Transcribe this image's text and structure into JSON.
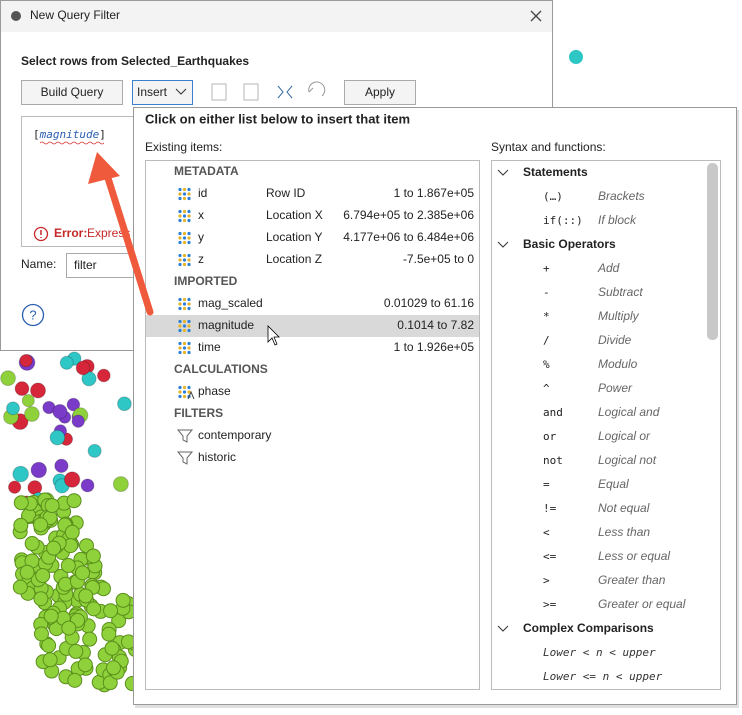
{
  "dialog": {
    "title": "New Query Filter",
    "prompt": "Select rows from Selected_Earthquakes",
    "buttons": [
      "Build Query",
      "Insert",
      "Apply"
    ],
    "expression": [
      "[",
      "magnitude",
      "]"
    ],
    "error_label": "Error:",
    "error_text": "Express",
    "name_label": "Name:",
    "name_value": "filter",
    "help": "?"
  },
  "popup": {
    "heading": "Click on either list below to insert that item",
    "existing_label": "Existing items:",
    "syntax_label": "Syntax and functions:",
    "existing_groups": [
      {
        "title": "METADATA",
        "items": [
          {
            "name": "id",
            "desc": "Row ID",
            "range": "1 to 1.867e+05"
          },
          {
            "name": "x",
            "desc": "Location X",
            "range": "6.794e+05 to 2.385e+06"
          },
          {
            "name": "y",
            "desc": "Location Y",
            "range": "4.177e+06 to 6.484e+06"
          },
          {
            "name": "z",
            "desc": "Location Z",
            "range": "-7.5e+05 to 0"
          }
        ]
      },
      {
        "title": "IMPORTED",
        "items": [
          {
            "name": "mag_scaled",
            "range": "0.01029 to 61.16"
          },
          {
            "name": "magnitude",
            "range": "0.1014 to 7.82"
          },
          {
            "name": "time",
            "range": "1 to 1.926e+05"
          }
        ]
      },
      {
        "title": "CALCULATIONS",
        "items": [
          {
            "name": "phase"
          }
        ]
      },
      {
        "title": "FILTERS",
        "items": [
          {
            "name": "contemporary"
          },
          {
            "name": "historic"
          }
        ]
      }
    ],
    "syntax_groups": [
      {
        "title": "Statements",
        "items": [
          {
            "symbol": "(…)",
            "desc": "Brackets"
          },
          {
            "symbol": "if(::)",
            "desc": "If block"
          }
        ]
      },
      {
        "title": "Basic Operators",
        "items": [
          {
            "symbol": "+",
            "desc": "Add"
          },
          {
            "symbol": "-",
            "desc": "Subtract"
          },
          {
            "symbol": "*",
            "desc": "Multiply"
          },
          {
            "symbol": "/",
            "desc": "Divide"
          },
          {
            "symbol": "%",
            "desc": "Modulo"
          },
          {
            "symbol": "^",
            "desc": "Power"
          },
          {
            "symbol": "and",
            "desc": "Logical and"
          },
          {
            "symbol": "or",
            "desc": "Logical or"
          },
          {
            "symbol": "not",
            "desc": "Logical not"
          },
          {
            "symbol": "=",
            "desc": "Equal"
          },
          {
            "symbol": "!=",
            "desc": "Not equal"
          },
          {
            "symbol": "<",
            "desc": "Less than"
          },
          {
            "symbol": "<=",
            "desc": "Less or equal"
          },
          {
            "symbol": ">",
            "desc": "Greater than"
          },
          {
            "symbol": ">=",
            "desc": "Greater or equal"
          }
        ]
      },
      {
        "title": "Complex Comparisons",
        "items": [
          {
            "symbol": "Lower < n < upper"
          },
          {
            "symbol": "Lower <= n < upper"
          }
        ]
      }
    ]
  }
}
